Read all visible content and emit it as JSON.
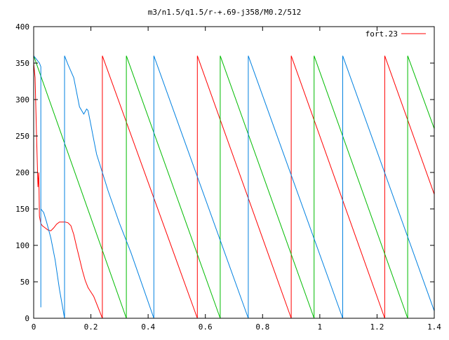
{
  "chart_data": {
    "type": "line",
    "title": "m3/n1.5/q1.5/r-+.69-j358/M0.2/512",
    "xlabel": "",
    "ylabel": "",
    "xlim": [
      0,
      1.4
    ],
    "ylim": [
      0,
      400
    ],
    "x_ticks": [
      0,
      0.2,
      0.4,
      0.6,
      0.8,
      1,
      1.2,
      1.4
    ],
    "x_tick_labels": [
      "0",
      "0.2",
      "0.4",
      "0.6",
      "0.8",
      "1",
      "1.2",
      "1.4"
    ],
    "y_ticks": [
      0,
      50,
      100,
      150,
      200,
      250,
      300,
      350,
      400
    ],
    "y_tick_labels": [
      "0",
      "50",
      "100",
      "150",
      "200",
      "250",
      "300",
      "350",
      "400"
    ],
    "grid": false,
    "legend": {
      "position": "top-right",
      "entries": [
        "fort.23"
      ]
    },
    "series": [
      {
        "name": "fort.23",
        "color": "#ff0000",
        "points": [
          [
            0.0,
            350
          ],
          [
            0.005,
            330
          ],
          [
            0.01,
            250
          ],
          [
            0.015,
            180
          ],
          [
            0.018,
            200
          ],
          [
            0.02,
            140
          ],
          [
            0.025,
            130
          ],
          [
            0.03,
            127
          ],
          [
            0.04,
            124
          ],
          [
            0.05,
            121
          ],
          [
            0.06,
            120
          ],
          [
            0.07,
            124
          ],
          [
            0.08,
            129
          ],
          [
            0.09,
            132
          ],
          [
            0.1,
            132
          ],
          [
            0.11,
            132
          ],
          [
            0.12,
            131
          ],
          [
            0.13,
            127
          ],
          [
            0.14,
            115
          ],
          [
            0.15,
            98
          ],
          [
            0.16,
            82
          ],
          [
            0.17,
            66
          ],
          [
            0.18,
            52
          ],
          [
            0.19,
            42
          ],
          [
            0.2,
            36
          ],
          [
            0.21,
            30
          ],
          [
            0.22,
            20
          ],
          [
            0.23,
            10
          ],
          [
            0.24,
            0
          ],
          [
            0.24,
            360
          ],
          [
            0.572,
            0
          ],
          [
            0.572,
            360
          ],
          [
            0.9,
            0
          ],
          [
            0.9,
            360
          ],
          [
            1.227,
            0
          ],
          [
            1.227,
            360
          ],
          [
            1.4,
            170
          ]
        ]
      },
      {
        "name": "",
        "color": "#00bb00",
        "points": [
          [
            0.0,
            360
          ],
          [
            0.324,
            0
          ],
          [
            0.324,
            360
          ],
          [
            0.652,
            0
          ],
          [
            0.652,
            360
          ],
          [
            0.98,
            0
          ],
          [
            0.98,
            360
          ],
          [
            1.307,
            0
          ],
          [
            1.307,
            360
          ],
          [
            1.4,
            260
          ]
        ]
      },
      {
        "name": "",
        "color": "#0080e0",
        "points": [
          [
            0.0,
            360
          ],
          [
            0.01,
            355
          ],
          [
            0.02,
            350
          ],
          [
            0.025,
            345
          ],
          [
            0.025,
            15
          ],
          [
            0.025,
            150
          ],
          [
            0.035,
            145
          ],
          [
            0.045,
            132
          ],
          [
            0.06,
            110
          ],
          [
            0.075,
            80
          ],
          [
            0.09,
            40
          ],
          [
            0.108,
            0
          ],
          [
            0.108,
            360
          ],
          [
            0.12,
            348
          ],
          [
            0.14,
            330
          ],
          [
            0.15,
            310
          ],
          [
            0.16,
            290
          ],
          [
            0.175,
            280
          ],
          [
            0.185,
            287
          ],
          [
            0.19,
            285
          ],
          [
            0.2,
            265
          ],
          [
            0.21,
            245
          ],
          [
            0.22,
            225
          ],
          [
            0.24,
            200
          ],
          [
            0.26,
            175
          ],
          [
            0.3,
            130
          ],
          [
            0.34,
            90
          ],
          [
            0.38,
            45
          ],
          [
            0.42,
            0
          ],
          [
            0.42,
            360
          ],
          [
            0.75,
            0
          ],
          [
            0.75,
            360
          ],
          [
            1.08,
            0
          ],
          [
            1.08,
            360
          ],
          [
            1.4,
            10
          ]
        ]
      }
    ]
  }
}
